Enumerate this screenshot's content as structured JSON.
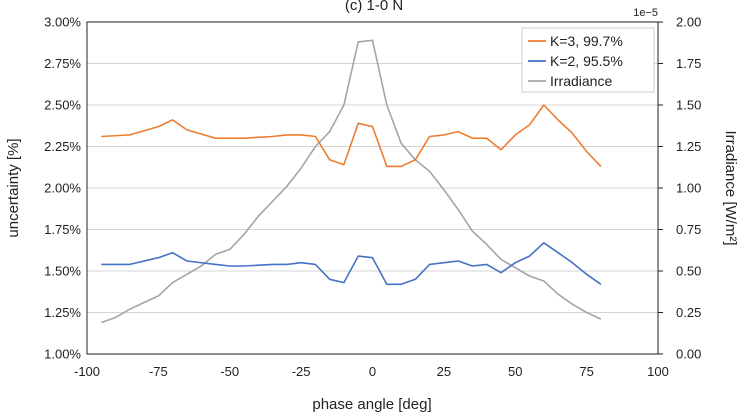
{
  "chart_data": {
    "type": "line",
    "title": "(c) 1-0 N",
    "xlabel": "phase angle [deg]",
    "ylabel": "uncertainty [%]",
    "y2label": "Irradiance [W/m²]",
    "y2_exponent": "1e−5",
    "xlim": [
      -100,
      100
    ],
    "ylim": [
      1.0,
      3.0
    ],
    "y2lim": [
      0.0,
      2.0
    ],
    "x_ticks": [
      "-100",
      "-75",
      "-50",
      "-25",
      "0",
      "25",
      "50",
      "75",
      "100"
    ],
    "x_tick_values": [
      -100,
      -75,
      -50,
      -25,
      0,
      25,
      50,
      75,
      100
    ],
    "y_ticks": [
      "1.00%",
      "1.25%",
      "1.50%",
      "1.75%",
      "2.00%",
      "2.25%",
      "2.50%",
      "2.75%",
      "3.00%"
    ],
    "y_tick_values": [
      1.0,
      1.25,
      1.5,
      1.75,
      2.0,
      2.25,
      2.5,
      2.75,
      3.0
    ],
    "y2_ticks": [
      "0.00",
      "0.25",
      "0.50",
      "0.75",
      "1.00",
      "1.25",
      "1.50",
      "1.75",
      "2.00"
    ],
    "y2_tick_values": [
      0,
      0.25,
      0.5,
      0.75,
      1.0,
      1.25,
      1.5,
      1.75,
      2.0
    ],
    "grid": true,
    "legend_position": "top-right",
    "series": [
      {
        "name": "K=3, 99.7%",
        "axis": "left",
        "color": "#ED7D31",
        "x": [
          -95,
          -85,
          -75,
          -70,
          -65,
          -55,
          -50,
          -45,
          -35,
          -30,
          -25,
          -20,
          -15,
          -10,
          -5,
          0,
          5,
          10,
          15,
          20,
          25,
          30,
          35,
          40,
          45,
          50,
          55,
          60,
          65,
          70,
          75,
          80
        ],
        "y": [
          2.31,
          2.32,
          2.37,
          2.41,
          2.35,
          2.3,
          2.3,
          2.3,
          2.31,
          2.32,
          2.32,
          2.31,
          2.17,
          2.14,
          2.39,
          2.37,
          2.13,
          2.13,
          2.17,
          2.31,
          2.32,
          2.34,
          2.3,
          2.3,
          2.23,
          2.32,
          2.38,
          2.5,
          2.41,
          2.33,
          2.22,
          2.13
        ]
      },
      {
        "name": "K=2, 95.5%",
        "axis": "left",
        "color": "#4472C4",
        "x": [
          -95,
          -85,
          -75,
          -70,
          -65,
          -55,
          -50,
          -45,
          -35,
          -30,
          -25,
          -20,
          -15,
          -10,
          -5,
          0,
          5,
          10,
          15,
          20,
          25,
          30,
          35,
          40,
          45,
          50,
          55,
          60,
          65,
          70,
          75,
          80
        ],
        "y": [
          1.54,
          1.54,
          1.58,
          1.61,
          1.56,
          1.54,
          1.53,
          1.53,
          1.54,
          1.54,
          1.55,
          1.54,
          1.45,
          1.43,
          1.59,
          1.58,
          1.42,
          1.42,
          1.45,
          1.54,
          1.55,
          1.56,
          1.53,
          1.54,
          1.49,
          1.55,
          1.59,
          1.67,
          1.61,
          1.55,
          1.48,
          1.42
        ]
      },
      {
        "name": "Irradiance",
        "axis": "right",
        "color": "#A5A5A5",
        "x": [
          -95,
          -90,
          -85,
          -80,
          -75,
          -70,
          -65,
          -60,
          -55,
          -50,
          -45,
          -40,
          -35,
          -30,
          -25,
          -20,
          -15,
          -10,
          -5,
          0,
          5,
          10,
          15,
          20,
          25,
          30,
          35,
          40,
          45,
          50,
          55,
          60,
          65,
          70,
          75,
          80
        ],
        "y": [
          0.19,
          0.22,
          0.27,
          0.31,
          0.35,
          0.43,
          0.48,
          0.53,
          0.6,
          0.63,
          0.72,
          0.83,
          0.92,
          1.01,
          1.12,
          1.25,
          1.34,
          1.5,
          1.88,
          1.89,
          1.5,
          1.27,
          1.17,
          1.1,
          0.99,
          0.87,
          0.74,
          0.66,
          0.57,
          0.52,
          0.47,
          0.44,
          0.36,
          0.3,
          0.25,
          0.21
        ]
      }
    ]
  }
}
